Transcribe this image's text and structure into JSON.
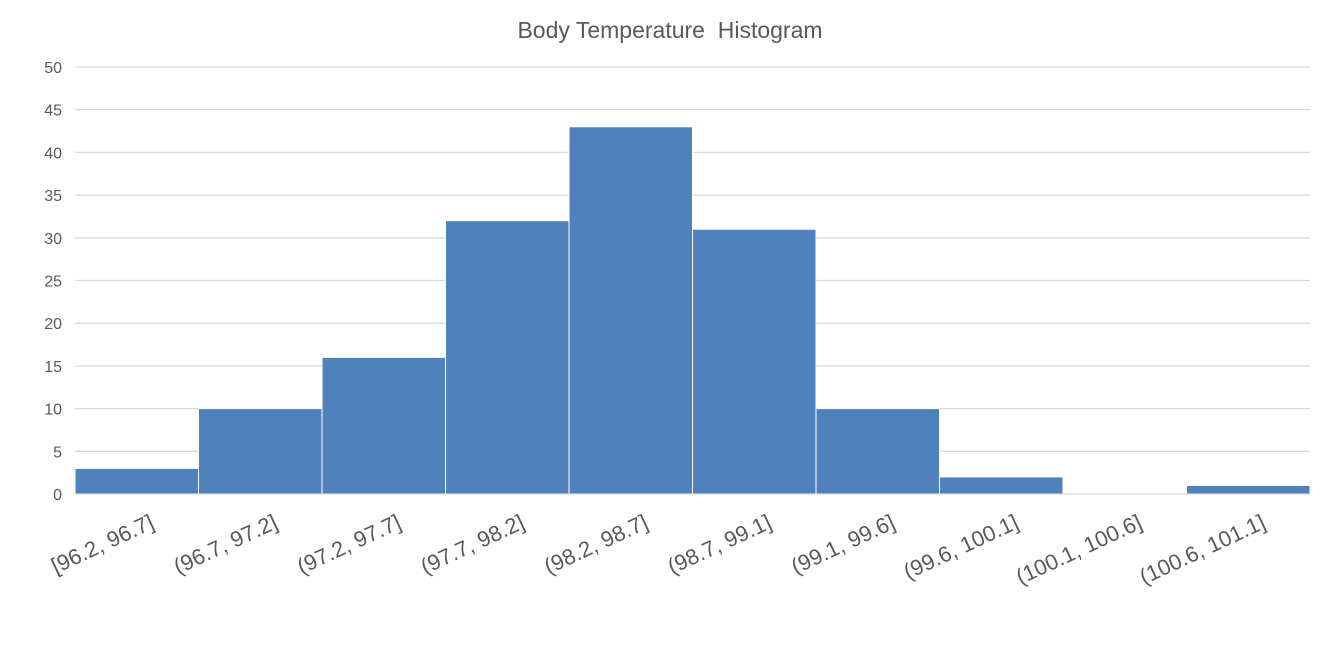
{
  "chart_data": {
    "type": "bar",
    "title": "Body Temperature  Histogram",
    "xlabel": "",
    "ylabel": "",
    "categories": [
      "[96.2, 96.7]",
      "(96.7, 97.2]",
      "(97.2, 97.7]",
      "(97.7, 98.2]",
      "(98.2, 98.7]",
      "(98.7, 99.1]",
      "(99.1, 99.6]",
      "(99.6, 100.1]",
      "(100.1, 100.6]",
      "(100.6, 101.1]"
    ],
    "values": [
      3,
      10,
      16,
      32,
      43,
      31,
      10,
      2,
      0,
      1
    ],
    "ylim": [
      0,
      50
    ],
    "yticks": [
      0,
      5,
      10,
      15,
      20,
      25,
      30,
      35,
      40,
      45,
      50
    ],
    "grid": true,
    "legend": "none",
    "bar_color": "#4f81bd",
    "grid_color": "#d9d9d9",
    "text_color": "#595959"
  }
}
